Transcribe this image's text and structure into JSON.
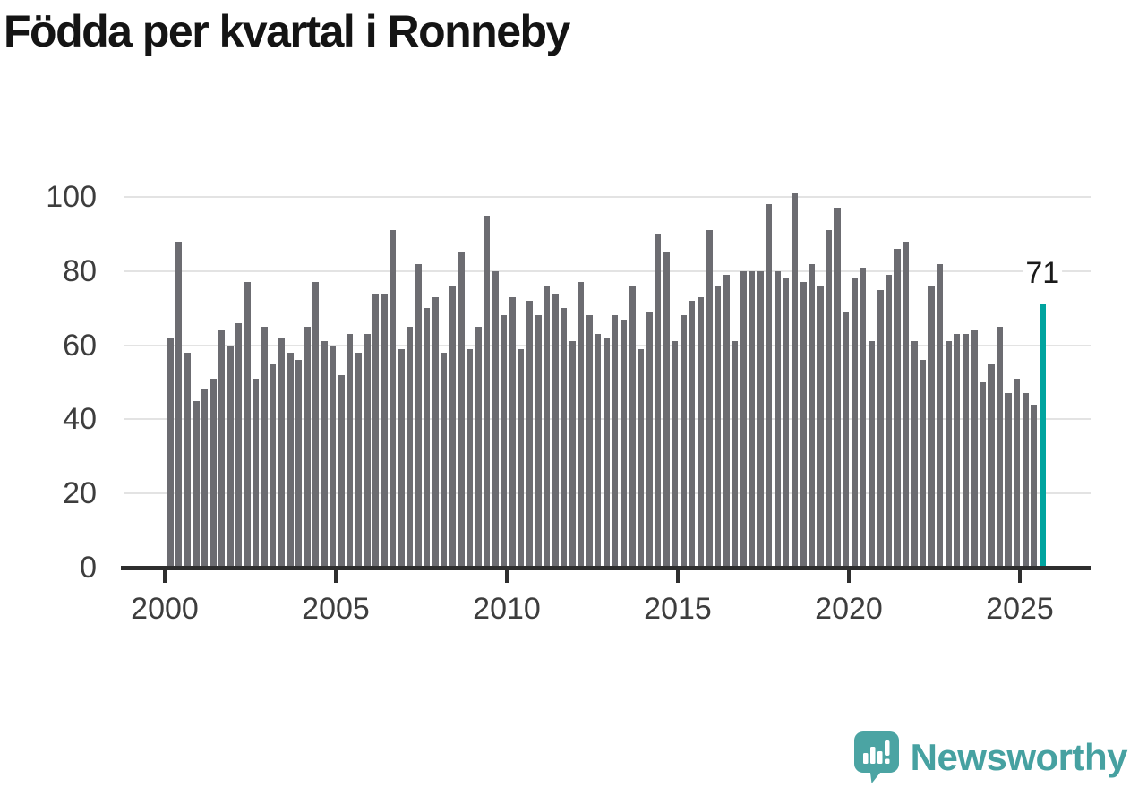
{
  "title": "Födda per kvartal i Ronneby",
  "chart_data": {
    "type": "bar",
    "title": "Födda per kvartal i Ronneby",
    "frequency": "quarterly",
    "start_period": "2000-Q1",
    "end_period": "2025-Q3",
    "x_tick_labels": [
      "2000",
      "2005",
      "2010",
      "2015",
      "2020",
      "2025"
    ],
    "y_ticks": [
      0,
      20,
      40,
      60,
      80,
      100
    ],
    "ylim": [
      0,
      105
    ],
    "grid": true,
    "values": [
      62,
      88,
      58,
      45,
      48,
      51,
      64,
      60,
      66,
      77,
      51,
      65,
      55,
      62,
      58,
      56,
      65,
      77,
      61,
      60,
      52,
      63,
      58,
      63,
      74,
      74,
      91,
      59,
      65,
      82,
      70,
      73,
      58,
      76,
      85,
      59,
      65,
      95,
      80,
      68,
      73,
      59,
      72,
      68,
      76,
      74,
      70,
      61,
      77,
      68,
      63,
      62,
      68,
      67,
      76,
      59,
      69,
      90,
      85,
      61,
      68,
      72,
      73,
      91,
      76,
      79,
      61,
      80,
      80,
      80,
      98,
      80,
      78,
      101,
      77,
      82,
      76,
      91,
      97,
      69,
      78,
      81,
      61,
      75,
      79,
      86,
      88,
      61,
      56,
      76,
      82,
      61,
      63,
      63,
      64,
      50,
      55,
      65,
      47,
      51,
      47,
      44,
      71
    ],
    "highlight_index": 102,
    "highlight_label": "71",
    "colors": {
      "bar": "#6c6c71",
      "highlight": "#00a49f",
      "gridline": "#e3e3e3",
      "axis": "#2e2e2e",
      "tick_label": "#3d3d3d",
      "annotation": "#1a1a1a"
    }
  },
  "branding": {
    "logo_text": "Newsworthy",
    "logo_color": "#46a1a1",
    "icon_color": "#4ba4a3"
  }
}
